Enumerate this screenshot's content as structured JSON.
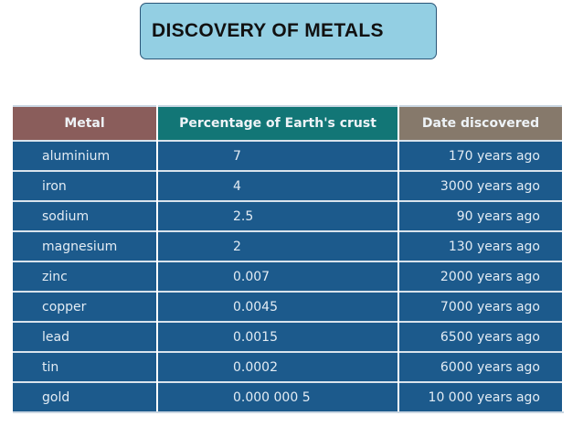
{
  "header": {
    "title": "DISCOVERY OF METALS"
  },
  "table": {
    "columns": [
      "Metal",
      "Percentage of Earth's crust",
      "Date discovered"
    ],
    "rows": [
      [
        "aluminium",
        "7",
        "170 years ago"
      ],
      [
        "iron",
        "4",
        "3000 years ago"
      ],
      [
        "sodium",
        "2.5",
        "90 years ago"
      ],
      [
        "magnesium",
        "2",
        "130 years ago"
      ],
      [
        "zinc",
        "0.007",
        "2000 years ago"
      ],
      [
        "copper",
        "0.0045",
        "7000 years ago"
      ],
      [
        "lead",
        "0.0015",
        "6500 years ago"
      ],
      [
        "tin",
        "0.0002",
        "6000 years ago"
      ],
      [
        "gold",
        "0.000 000 5",
        "10 000 years ago"
      ]
    ]
  }
}
